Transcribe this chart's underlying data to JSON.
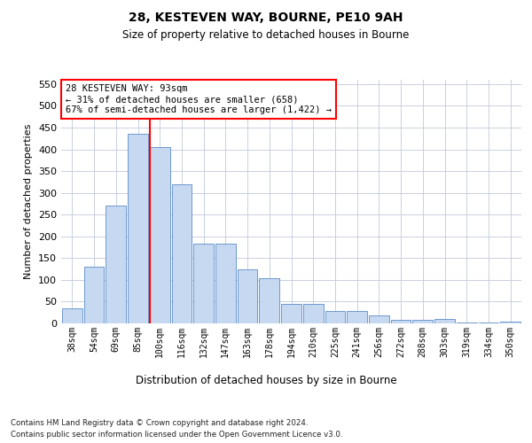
{
  "title1": "28, KESTEVEN WAY, BOURNE, PE10 9AH",
  "title2": "Size of property relative to detached houses in Bourne",
  "xlabel": "Distribution of detached houses by size in Bourne",
  "ylabel": "Number of detached properties",
  "bin_labels": [
    "38sqm",
    "54sqm",
    "69sqm",
    "85sqm",
    "100sqm",
    "116sqm",
    "132sqm",
    "147sqm",
    "163sqm",
    "178sqm",
    "194sqm",
    "210sqm",
    "225sqm",
    "241sqm",
    "256sqm",
    "272sqm",
    "288sqm",
    "303sqm",
    "319sqm",
    "334sqm",
    "350sqm"
  ],
  "bar_values": [
    35,
    130,
    270,
    435,
    405,
    320,
    183,
    183,
    125,
    103,
    45,
    45,
    28,
    28,
    18,
    8,
    8,
    10,
    3,
    3,
    5
  ],
  "bar_color": "#c6d9f0",
  "bar_edge_color": "#5b8cc8",
  "ylim": [
    0,
    560
  ],
  "yticks": [
    0,
    50,
    100,
    150,
    200,
    250,
    300,
    350,
    400,
    450,
    500,
    550
  ],
  "annotation_box_text": "28 KESTEVEN WAY: 93sqm\n← 31% of detached houses are smaller (658)\n67% of semi-detached houses are larger (1,422) →",
  "footer_line1": "Contains HM Land Registry data © Crown copyright and database right 2024.",
  "footer_line2": "Contains public sector information licensed under the Open Government Licence v3.0.",
  "bg_color": "#ffffff",
  "grid_color": "#c8d0de"
}
